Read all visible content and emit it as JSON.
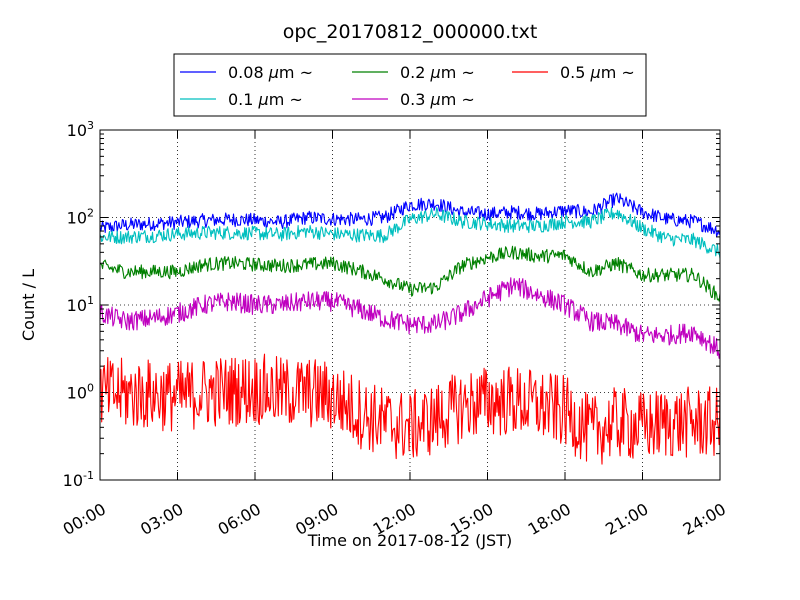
{
  "chart_data": {
    "type": "line",
    "title": "opc_20170812_000000.txt",
    "xlabel": "Time on 2017-08-12 (JST)",
    "ylabel": "Count / L",
    "yscale": "log",
    "ylim": [
      0.1,
      1000
    ],
    "y_ticks": [
      {
        "value": 0.1,
        "base": "10",
        "exp": "-1"
      },
      {
        "value": 1,
        "base": "10",
        "exp": "0"
      },
      {
        "value": 10,
        "base": "10",
        "exp": "1"
      },
      {
        "value": 100,
        "base": "10",
        "exp": "2"
      },
      {
        "value": 1000,
        "base": "10",
        "exp": "3"
      }
    ],
    "xlim": [
      "00:00",
      "24:00"
    ],
    "x_ticks": [
      "00:00",
      "03:00",
      "06:00",
      "09:00",
      "12:00",
      "15:00",
      "18:00",
      "21:00",
      "24:00"
    ],
    "grid": true,
    "legend_position": "top-center, outside plot",
    "x_hours": [
      0,
      1,
      2,
      3,
      4,
      5,
      6,
      7,
      8,
      9,
      10,
      11,
      12,
      13,
      14,
      15,
      16,
      17,
      18,
      19,
      20,
      21,
      22,
      23,
      24
    ],
    "series": [
      {
        "name_prefix": "0.08 ",
        "name_mu": "μ",
        "name_suffix": "m  ~",
        "color": "#0000ff",
        "values": [
          75,
          82,
          85,
          88,
          92,
          95,
          93,
          88,
          100,
          96,
          95,
          100,
          140,
          145,
          115,
          110,
          115,
          110,
          120,
          115,
          165,
          115,
          95,
          90,
          70
        ]
      },
      {
        "name_prefix": "0.1 ",
        "name_mu": "μ",
        "name_suffix": "m  ~",
        "color": "#00bfbf",
        "values": [
          60,
          60,
          62,
          65,
          67,
          67,
          66,
          64,
          70,
          65,
          63,
          62,
          95,
          110,
          90,
          85,
          80,
          80,
          90,
          90,
          115,
          75,
          57,
          55,
          40
        ]
      },
      {
        "name_prefix": "0.2 ",
        "name_mu": "μ",
        "name_suffix": "m  ~",
        "color": "#008000",
        "values": [
          28,
          24,
          24,
          24,
          29,
          30,
          29,
          28,
          29,
          30,
          25,
          20,
          15,
          16,
          28,
          35,
          40,
          36,
          37,
          24,
          30,
          22,
          22,
          22,
          12
        ]
      },
      {
        "name_prefix": "0.3 ",
        "name_mu": "μ",
        "name_suffix": "m  ~",
        "color": "#bf00bf",
        "values": [
          8,
          6.5,
          7,
          8,
          10,
          11,
          10,
          10,
          11,
          11,
          9,
          7,
          6,
          6,
          8,
          12,
          17,
          13,
          10,
          6.5,
          6,
          4.5,
          4.5,
          5,
          3
        ]
      },
      {
        "name_prefix": "0.5 ",
        "name_mu": "μ",
        "name_suffix": "m  ~",
        "color": "#ff0000",
        "values": [
          1.0,
          0.95,
          0.95,
          0.9,
          1.0,
          1.05,
          1.1,
          1.0,
          1.0,
          0.9,
          0.6,
          0.45,
          0.4,
          0.5,
          0.7,
          0.8,
          0.8,
          0.7,
          0.6,
          0.35,
          0.45,
          0.4,
          0.45,
          0.45,
          0.45
        ]
      }
    ]
  }
}
